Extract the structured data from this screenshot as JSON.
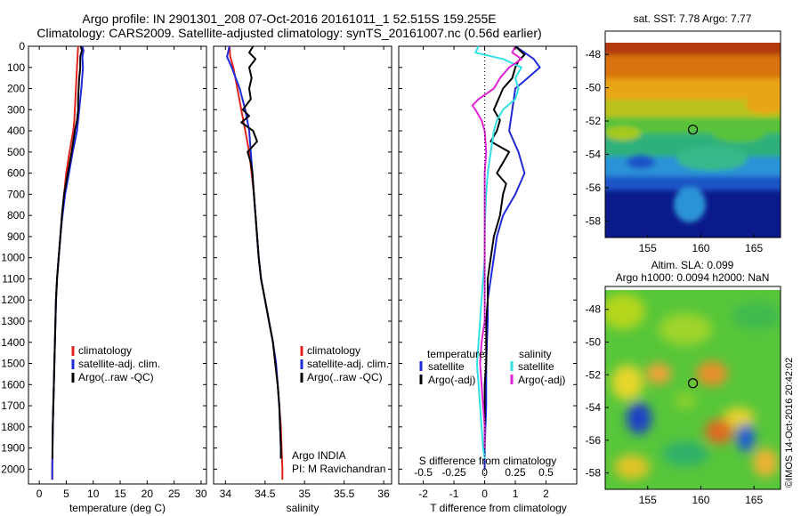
{
  "header": {
    "title_line1": "Argo profile: IN 2901301_208 07-Oct-2016 20161011_1 52.515S 159.255E",
    "title_line2": "Climatology: CARS2009. Satellite-adjusted climatology: synTS_20161007.nc (0.56d earlier)"
  },
  "colors": {
    "climatology": "#e0241b",
    "satellite": "#1f2ad8",
    "argo": "#000000",
    "salinity_satellite": "#33e0e6",
    "salinity_argo": "#e022d6"
  },
  "chart_data": [
    {
      "type": "line",
      "name": "temperature-profile",
      "xlabel": "temperature (deg C)",
      "xlim": [
        -2,
        31
      ],
      "xticks": [
        "0",
        "5",
        "10",
        "15",
        "20",
        "25",
        "30"
      ],
      "ylim": [
        2070,
        0
      ],
      "yticks": [
        "0",
        "100",
        "200",
        "300",
        "400",
        "500",
        "600",
        "700",
        "800",
        "900",
        "1000",
        "1100",
        "1200",
        "1300",
        "1400",
        "1500",
        "1600",
        "1700",
        "1800",
        "1900",
        "2000"
      ],
      "legend": [
        "climatology",
        "satellite-adj. clim.",
        "Argo(..raw -QC)"
      ],
      "series": [
        {
          "name": "climatology",
          "color": "#e0241b",
          "depth": [
            0,
            100,
            200,
            300,
            350,
            400,
            500,
            600,
            700,
            800,
            900,
            1000,
            1100,
            1200,
            1300,
            1400,
            1500,
            1600,
            1700,
            1800,
            1900,
            2000,
            2050
          ],
          "values": [
            7.2,
            7.0,
            6.8,
            6.6,
            6.5,
            6.3,
            5.6,
            5.0,
            4.6,
            4.2,
            3.9,
            3.6,
            3.3,
            3.1,
            3.0,
            2.9,
            2.8,
            2.7,
            2.6,
            2.5,
            2.45,
            2.4,
            2.4
          ]
        },
        {
          "name": "satellite-adj. clim.",
          "color": "#1f2ad8",
          "depth": [
            0,
            20,
            50,
            100,
            200,
            300,
            400,
            500,
            600,
            700,
            800,
            900,
            1000,
            1100,
            1200,
            1300,
            1400,
            1500,
            1600,
            1700,
            1800,
            1900,
            2000,
            2050
          ],
          "values": [
            8.0,
            8.2,
            8.0,
            8.1,
            7.8,
            7.4,
            7.0,
            6.2,
            5.5,
            4.8,
            4.3,
            3.9,
            3.6,
            3.3,
            3.1,
            3.0,
            2.9,
            2.8,
            2.7,
            2.6,
            2.5,
            2.45,
            2.4,
            2.4
          ]
        },
        {
          "name": "Argo(..raw -QC)",
          "color": "#000000",
          "depth": [
            0,
            20,
            50,
            100,
            150,
            200,
            250,
            300,
            350,
            400,
            500,
            600,
            700,
            800,
            900,
            1000,
            1100,
            1200,
            1300,
            1400,
            1500,
            1600,
            1700,
            1800,
            1900,
            1950
          ],
          "values": [
            7.7,
            7.9,
            7.6,
            7.6,
            7.4,
            7.3,
            7.2,
            7.2,
            7.0,
            6.6,
            6.0,
            5.3,
            4.6,
            4.2,
            3.9,
            3.6,
            3.3,
            3.1,
            3.0,
            2.9,
            2.8,
            2.7,
            2.6,
            2.5,
            2.45,
            2.45
          ]
        }
      ]
    },
    {
      "type": "line",
      "name": "salinity-profile",
      "xlabel": "salinity",
      "xlim": [
        33.85,
        36.1
      ],
      "xticks": [
        "34",
        "34.5",
        "35",
        "35.5",
        "36"
      ],
      "ylim": [
        2070,
        0
      ],
      "legend": [
        "climatology",
        "satellite-adj. clim.",
        "Argo(..raw -QC)"
      ],
      "annotations": [
        "Argo INDIA",
        "PI: M Ravichandran"
      ],
      "series": [
        {
          "name": "climatology",
          "color": "#e0241b",
          "depth": [
            0,
            50,
            100,
            200,
            300,
            400,
            500,
            600,
            700,
            800,
            900,
            1000,
            1100,
            1200,
            1300,
            1400,
            1500,
            1600,
            1700,
            1800,
            1900,
            2000,
            2050
          ],
          "values": [
            34.05,
            34.06,
            34.1,
            34.15,
            34.2,
            34.25,
            34.3,
            34.33,
            34.36,
            34.38,
            34.4,
            34.42,
            34.45,
            34.5,
            34.55,
            34.6,
            34.63,
            34.66,
            34.68,
            34.7,
            34.71,
            34.72,
            34.72
          ]
        },
        {
          "name": "satellite-adj. clim.",
          "color": "#1f2ad8",
          "depth": [
            0,
            50,
            100,
            200,
            300,
            400,
            500,
            600,
            700,
            800,
            900,
            1000,
            1100,
            1200,
            1300,
            1400,
            1500,
            1600,
            1700,
            1800,
            1900,
            1950
          ],
          "values": [
            34.05,
            34.02,
            34.08,
            34.18,
            34.25,
            34.3,
            34.32,
            34.34,
            34.36,
            34.38,
            34.4,
            34.42,
            34.45,
            34.5,
            34.55,
            34.6,
            34.64,
            34.66,
            34.68,
            34.69,
            34.7,
            34.7
          ]
        },
        {
          "name": "Argo(..raw -QC)",
          "color": "#000000",
          "depth": [
            0,
            30,
            60,
            100,
            150,
            200,
            250,
            300,
            330,
            360,
            400,
            450,
            500,
            550,
            600,
            700,
            800,
            900,
            1000,
            1100,
            1200,
            1300,
            1400,
            1500,
            1600,
            1700,
            1800,
            1900,
            1950
          ],
          "values": [
            34.35,
            34.3,
            34.38,
            34.3,
            34.33,
            34.3,
            34.32,
            34.22,
            34.3,
            34.2,
            34.35,
            34.4,
            34.28,
            34.32,
            34.34,
            34.36,
            34.38,
            34.4,
            34.42,
            34.45,
            34.5,
            34.55,
            34.6,
            34.63,
            34.66,
            34.68,
            34.69,
            34.7,
            34.7
          ]
        }
      ]
    },
    {
      "type": "line",
      "name": "difference-profile",
      "xlabel": "T difference from climatology",
      "xlabel_top": "S difference from climatology",
      "xlim": [
        -2.8,
        3.0
      ],
      "xticks": [
        "-2",
        "-1",
        "0",
        "1",
        "2"
      ],
      "xticks_top": [
        "-0.5",
        "-0.25",
        "0",
        "0.25",
        "0.5"
      ],
      "ylim": [
        2070,
        0
      ],
      "legend": [
        "temperature",
        "satellite",
        "Argo(-adj)",
        "salinity",
        "satellite",
        "Argo(-adj)"
      ],
      "series": [
        {
          "name": "temperature satellite",
          "color": "#1f2ad8",
          "depth": [
            0,
            30,
            60,
            100,
            150,
            200,
            300,
            400,
            500,
            600,
            700,
            800,
            900,
            1000,
            1100,
            1200,
            1300,
            1500,
            1700,
            1900,
            2000
          ],
          "values": [
            1.0,
            1.3,
            1.6,
            1.8,
            1.4,
            1.0,
            0.9,
            0.8,
            1.1,
            1.3,
            1.0,
            0.6,
            0.4,
            0.3,
            0.2,
            0.1,
            0.1,
            0.05,
            0.05,
            0.0,
            0.0
          ]
        },
        {
          "name": "temperature Argo(-adj)",
          "color": "#000000",
          "depth": [
            0,
            40,
            70,
            100,
            150,
            200,
            300,
            350,
            400,
            450,
            500,
            550,
            600,
            650,
            700,
            800,
            900,
            1000,
            1100,
            1200,
            1300,
            1400,
            1500,
            1600,
            1700,
            1800,
            1900
          ],
          "values": [
            1.0,
            1.3,
            1.1,
            1.0,
            0.9,
            0.6,
            0.3,
            0.5,
            0.4,
            0.2,
            0.8,
            0.6,
            0.4,
            0.7,
            0.6,
            0.5,
            0.3,
            0.2,
            0.1,
            0.1,
            0.05,
            0.05,
            0.05,
            0.0,
            0.0,
            0.0,
            0.0
          ]
        },
        {
          "name": "salinity satellite",
          "color": "#33e0e6",
          "depth": [
            0,
            30,
            60,
            100,
            150,
            200,
            250,
            300,
            350,
            400,
            500,
            600,
            700,
            800,
            900,
            1000,
            1100,
            1200,
            1300,
            1400,
            1500,
            1600,
            1700,
            1800,
            1900,
            1950
          ],
          "values": [
            -0.2,
            -0.3,
            0.6,
            1.2,
            1.0,
            1.1,
            1.0,
            0.6,
            0.4,
            0.3,
            0.2,
            0.1,
            0.05,
            0.02,
            0.0,
            0.0,
            -0.05,
            -0.1,
            -0.15,
            -0.2,
            -0.25,
            -0.2,
            -0.15,
            -0.1,
            -0.05,
            0.0
          ]
        },
        {
          "name": "salinity Argo(-adj)",
          "color": "#e022d6",
          "depth": [
            0,
            30,
            60,
            100,
            150,
            200,
            250,
            280,
            300,
            350,
            400,
            500,
            600,
            700,
            800,
            900,
            1000,
            1100,
            1200,
            1300,
            1400,
            1500,
            1600,
            1700,
            1800,
            1900
          ],
          "values": [
            1.0,
            0.9,
            1.2,
            0.8,
            0.5,
            0.3,
            -0.2,
            -0.4,
            -0.3,
            -0.1,
            0.0,
            0.05,
            0.0,
            0.0,
            0.0,
            0.0,
            0.0,
            0.0,
            0.0,
            0.0,
            -0.1,
            -0.15,
            -0.1,
            -0.05,
            0.0,
            0.0
          ]
        }
      ]
    },
    {
      "type": "heatmap",
      "name": "sst-map",
      "title": "sat. SST: 7.78  Argo: 7.77",
      "xticks": [
        "155",
        "160",
        "165"
      ],
      "yticks": [
        "-48",
        "-50",
        "-52",
        "-54",
        "-56",
        "-58"
      ],
      "xlim": [
        151,
        167.5
      ],
      "ylim": [
        -59,
        -46.6
      ],
      "argo_location": {
        "lon": 159.255,
        "lat": -52.515
      }
    },
    {
      "type": "heatmap",
      "name": "sla-map",
      "title_line1": "Altim. SLA: 0.099",
      "title_line2": "Argo h1000: 0.0094 h2000: NaN",
      "xticks": [
        "155",
        "160",
        "165"
      ],
      "yticks": [
        "-48",
        "-50",
        "-52",
        "-54",
        "-56",
        "-58"
      ],
      "xlim": [
        151,
        167.5
      ],
      "ylim": [
        -59,
        -46.6
      ],
      "argo_location": {
        "lon": 159.255,
        "lat": -52.515
      },
      "credit": "©IMOS 14-Oct-2016 20:42:02"
    }
  ]
}
